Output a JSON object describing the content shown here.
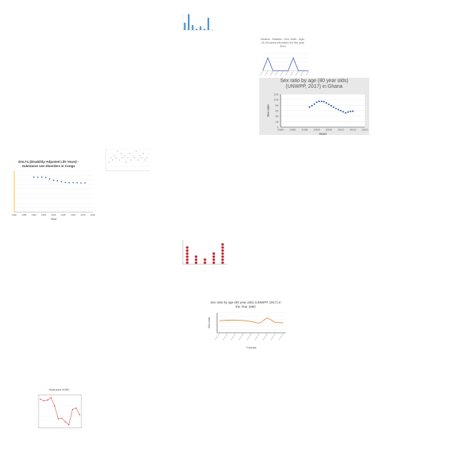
{
  "chart_data": [
    {
      "id": "c1",
      "type": "bar",
      "title": "",
      "xlabel": "",
      "ylabel": "",
      "categories": [
        "",
        "",
        "",
        "",
        "",
        "",
        "",
        ""
      ],
      "values": [
        6,
        13,
        4,
        1,
        3,
        1,
        10,
        0
      ],
      "ylim": [
        0,
        14
      ],
      "colors": {
        "bar": "#3f8fd2"
      }
    },
    {
      "id": "c2",
      "type": "line",
      "title": "Deaths - Malaria - Sex: Both - Age: 15-49 years (Number) for the year 2011",
      "xlabel": "",
      "ylabel": "",
      "categories": [
        "",
        "",
        "",
        "",
        "",
        "",
        "",
        "",
        "",
        ""
      ],
      "values": [
        0,
        3,
        0,
        0,
        0,
        0,
        3,
        0,
        0,
        0
      ],
      "ylim": [
        0,
        4
      ],
      "colors": {
        "line": "#3a55b4"
      }
    },
    {
      "id": "c3",
      "type": "scatter",
      "title": "Sex ratio by age (80 year olds) (UNWPP, 2017) in Ghana",
      "xlabel": "Years",
      "ylabel": "Sex ratio",
      "x": [
        1997,
        1998,
        1999,
        2000,
        2001,
        2002,
        2003,
        2004,
        2005,
        2006,
        2007,
        2008,
        2009,
        2010,
        2011,
        2012,
        2013,
        2014,
        2015
      ],
      "y": [
        73,
        78,
        84,
        91,
        94,
        94,
        93,
        88,
        83,
        78,
        73,
        68,
        64,
        60,
        56,
        52,
        55,
        57,
        58
      ],
      "xlim": [
        1985,
        2020
      ],
      "ylim": [
        0,
        120
      ],
      "xticks": [
        "1985",
        "1990",
        "1995",
        "2000",
        "2005",
        "2010",
        "2015",
        "2020"
      ],
      "yticks": [
        "0",
        "20",
        "40",
        "60",
        "80",
        "100",
        "120"
      ],
      "colors": {
        "point": "#2e54a8",
        "background": "#e8e8e8"
      }
    },
    {
      "id": "c4",
      "type": "scatter",
      "title": "",
      "xlabel": "",
      "ylabel": "",
      "x": [
        1,
        1.5,
        2,
        2.5,
        3,
        3.5,
        4,
        4.5,
        5,
        5.5,
        6,
        6.5,
        7,
        7.5,
        8,
        8.5,
        9,
        9.5,
        10,
        10.5,
        11,
        11.5,
        12
      ],
      "y": [
        4,
        6,
        5,
        7,
        6,
        9,
        5,
        8,
        6,
        7,
        4,
        6,
        8,
        5,
        7,
        6,
        9,
        5,
        7,
        6,
        8,
        5,
        6
      ],
      "xlim": [
        0,
        13
      ],
      "ylim": [
        0,
        10
      ],
      "colors": {
        "point": "#9a9a9a"
      }
    },
    {
      "id": "c5",
      "type": "scatter",
      "title": "DALYs (Disability-Adjusted Life Years) - Substance use disorders in Congo",
      "xlabel": "Year",
      "ylabel": "",
      "x": [
        1990,
        1992,
        1994,
        1996,
        1998,
        2000,
        2002,
        2004,
        2006,
        2008,
        2010,
        2012,
        2014,
        2016
      ],
      "y": [
        380,
        378,
        380,
        376,
        360,
        345,
        340,
        330,
        322,
        318,
        320,
        318,
        316,
        316
      ],
      "xlim": [
        1980,
        2020
      ],
      "ylim": [
        0,
        450
      ],
      "xticks": [
        "1980",
        "1985",
        "1990",
        "1995",
        "2000",
        "2005",
        "2010",
        "2015",
        "2020"
      ],
      "colors": {
        "point": "#2e54a8",
        "axis": "#f2c230"
      }
    },
    {
      "id": "c6",
      "type": "scatter",
      "title": "",
      "xlabel": "",
      "ylabel": "",
      "categories": [
        "",
        "",
        "",
        "",
        ""
      ],
      "values": [
        6,
        3,
        2,
        4,
        7
      ],
      "ylim": [
        0,
        8
      ],
      "colors": {
        "point": "#c0262d"
      }
    },
    {
      "id": "c7",
      "type": "line",
      "title": "Sex ratio by age (80 year olds) (UNWPP, 2017) in the Year 1990",
      "xlabel": "Country",
      "ylabel": "Sex ratio",
      "categories": [
        "",
        "",
        "",
        "",
        "",
        "",
        "",
        "",
        ""
      ],
      "values": [
        72,
        75,
        76,
        73,
        68,
        56,
        90,
        62,
        60
      ],
      "ylim": [
        0,
        120
      ],
      "colors": {
        "line": "#e08a3a"
      }
    },
    {
      "id": "c8",
      "type": "line",
      "title": "Stock price of NEL",
      "xlabel": "",
      "ylabel": "",
      "x": [
        1,
        2,
        3,
        4,
        5,
        6,
        7,
        8,
        9,
        10,
        11,
        12
      ],
      "y": [
        78,
        74,
        76,
        82,
        60,
        24,
        26,
        16,
        8,
        50,
        54,
        36
      ],
      "xlim": [
        0.5,
        12.5
      ],
      "ylim": [
        0,
        90
      ],
      "colors": {
        "line": "#d84a4a"
      }
    }
  ]
}
